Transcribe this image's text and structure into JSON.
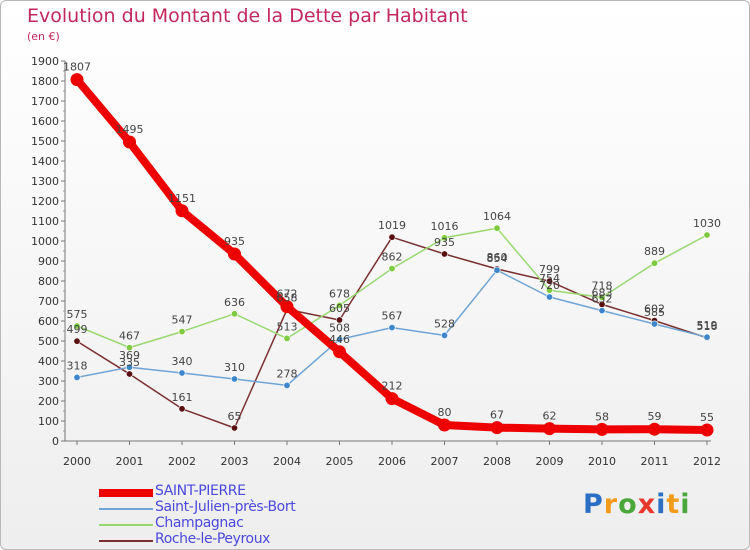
{
  "title": "Evolution du Montant de la Dette par Habitant",
  "unit_label": "(en €)",
  "brand": {
    "letters": [
      "P",
      "r",
      "o",
      "x",
      "i",
      "t",
      "i"
    ],
    "colors": [
      "#2b6fc4",
      "#f29a1a",
      "#4aa83a",
      "#e8382e",
      "#2b6fc4",
      "#f29a1a",
      "#4aa83a"
    ]
  },
  "chart_data": {
    "type": "line",
    "x": [
      "2000",
      "2001",
      "2002",
      "2003",
      "2004",
      "2005",
      "2006",
      "2007",
      "2008",
      "2009",
      "2010",
      "2011",
      "2012"
    ],
    "ylim": [
      0,
      1900
    ],
    "yticks": [
      0,
      100,
      200,
      300,
      400,
      500,
      600,
      700,
      800,
      900,
      1000,
      1100,
      1200,
      1300,
      1400,
      1500,
      1600,
      1700,
      1800,
      1900
    ],
    "grid": false,
    "legend_position": "bottom-left",
    "series": [
      {
        "name": "SAINT-PIERRE",
        "color": "#ee0000",
        "marker_color": "#ee0000",
        "values": [
          1807,
          1495,
          1151,
          935,
          672,
          446,
          212,
          80,
          67,
          62,
          58,
          59,
          55
        ]
      },
      {
        "name": "Saint-Julien-près-Bort",
        "color": "#6fa4d6",
        "marker_color": "#3d86cc",
        "values": [
          318,
          369,
          340,
          310,
          278,
          508,
          567,
          528,
          854,
          720,
          652,
          585,
          519
        ]
      },
      {
        "name": "Champagnac",
        "color": "#99d870",
        "marker_color": "#7ecb3f",
        "values": [
          575,
          467,
          547,
          636,
          513,
          678,
          862,
          1016,
          1064,
          754,
          718,
          889,
          1030
        ]
      },
      {
        "name": "Roche-le-Peyroux",
        "color": "#7a3030",
        "marker_color": "#5a1010",
        "values": [
          499,
          335,
          161,
          65,
          658,
          605,
          1019,
          935,
          860,
          799,
          683,
          602,
          516
        ]
      }
    ]
  }
}
